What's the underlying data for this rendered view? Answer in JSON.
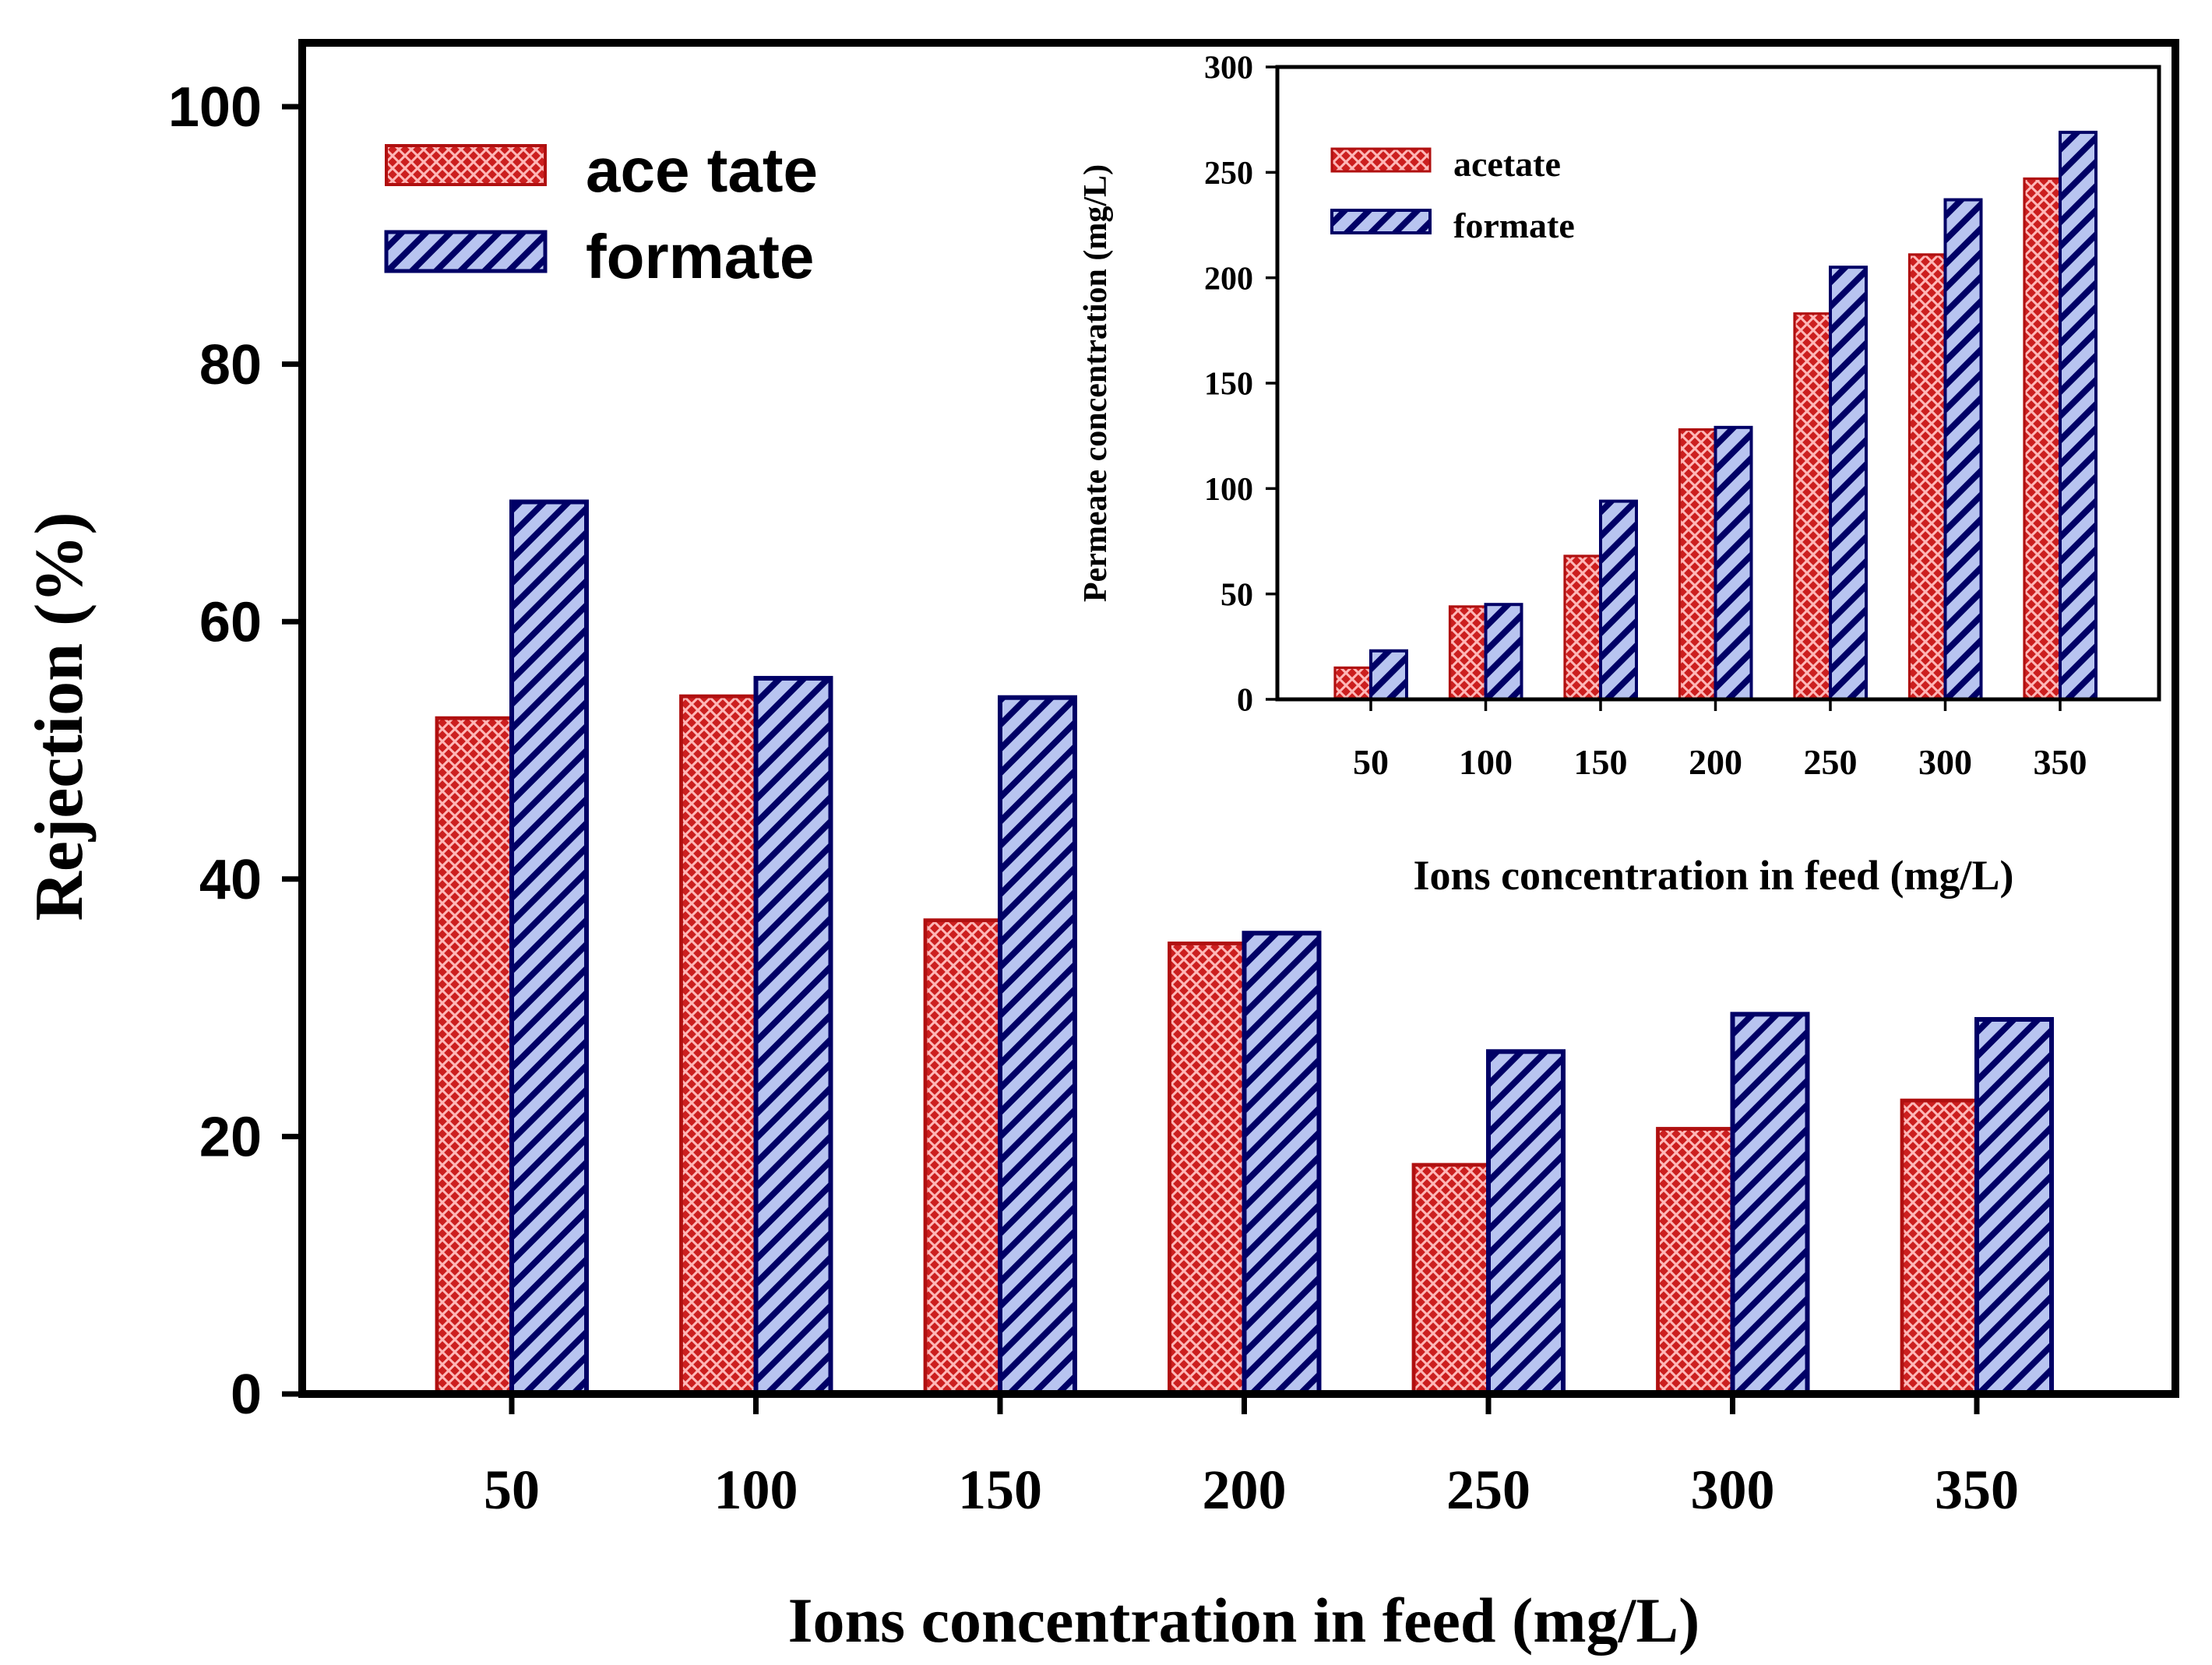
{
  "colors": {
    "acetate_fill": "#cc1f1f",
    "acetate_edge": "#b01010",
    "formate_fill": "#b8c4f0",
    "formate_stroke": "#000066",
    "formate_edge": "#000066",
    "axis": "#000000"
  },
  "chart_data": [
    {
      "id": "main",
      "type": "bar",
      "ylabel": "Rejection (%)",
      "xlabel": "Ions concentration in feed (mg/L)",
      "categories": [
        "50",
        "100",
        "150",
        "200",
        "250",
        "300",
        "350"
      ],
      "ylim": [
        0,
        100
      ],
      "yticks": [
        0,
        20,
        40,
        60,
        80,
        100
      ],
      "legend_position": "top-left",
      "series": [
        {
          "name": "acetate",
          "label": "ace tate",
          "values": [
            52.5,
            54.2,
            36.8,
            35.0,
            17.8,
            20.6,
            22.8
          ]
        },
        {
          "name": "formate",
          "label": "formate",
          "values": [
            69.3,
            55.6,
            54.1,
            35.8,
            26.6,
            29.5,
            29.1
          ]
        }
      ]
    },
    {
      "id": "inset",
      "type": "bar",
      "ylabel": "Permeate concentration (mg/L)",
      "xlabel": "Ions concentration in feed (mg/L)",
      "categories": [
        "50",
        "100",
        "150",
        "200",
        "250",
        "300",
        "350"
      ],
      "ylim": [
        0,
        300
      ],
      "yticks": [
        0,
        50,
        100,
        150,
        200,
        250,
        300
      ],
      "legend_position": "top-left",
      "series": [
        {
          "name": "acetate",
          "label": "acetate",
          "values": [
            15,
            44,
            68,
            128,
            183,
            211,
            247
          ]
        },
        {
          "name": "formate",
          "label": "formate",
          "values": [
            23,
            45,
            94,
            129,
            205,
            237,
            269
          ]
        }
      ]
    }
  ]
}
